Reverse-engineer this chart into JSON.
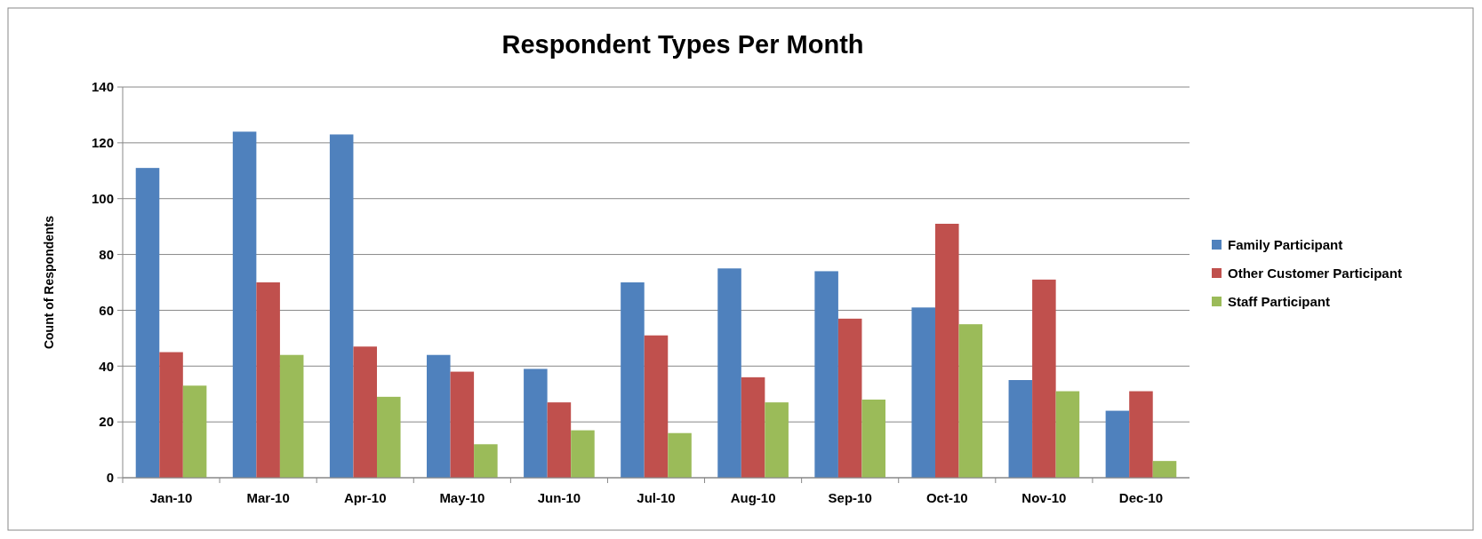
{
  "chart_data": {
    "type": "bar",
    "title": "Respondent Types Per Month",
    "ylabel": "Count of Respondents",
    "categories": [
      "Jan-10",
      "Mar-10",
      "Apr-10",
      "May-10",
      "Jun-10",
      "Jul-10",
      "Aug-10",
      "Sep-10",
      "Oct-10",
      "Nov-10",
      "Dec-10"
    ],
    "series": [
      {
        "name": "Family Participant",
        "color": "#4f81bd",
        "values": [
          111,
          124,
          123,
          44,
          39,
          70,
          75,
          74,
          61,
          35,
          24
        ]
      },
      {
        "name": "Other Customer Participant",
        "color": "#c0504d",
        "values": [
          45,
          70,
          47,
          38,
          27,
          51,
          36,
          57,
          91,
          71,
          31
        ]
      },
      {
        "name": "Staff Participant",
        "color": "#9bbb59",
        "values": [
          33,
          44,
          29,
          12,
          17,
          16,
          27,
          28,
          55,
          31,
          6
        ]
      }
    ],
    "ylim": [
      0,
      140
    ],
    "yticks": [
      0,
      20,
      40,
      60,
      80,
      100,
      120,
      140
    ],
    "grid": "y",
    "legend": "right"
  }
}
